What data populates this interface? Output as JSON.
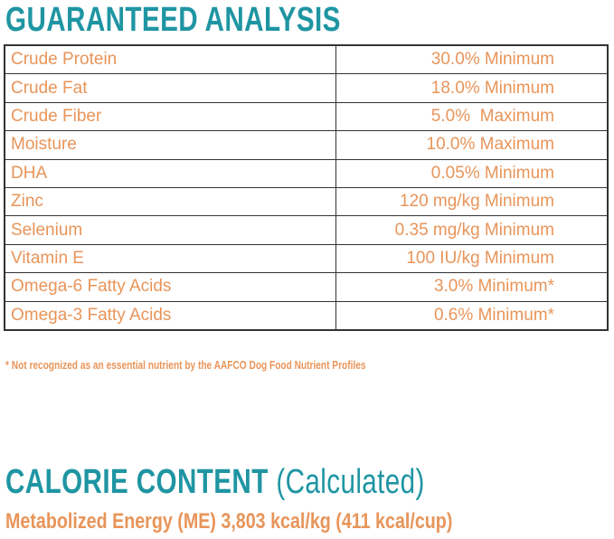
{
  "guaranteed_analysis": {
    "title": "GUARANTEED ANALYSIS",
    "rows": [
      {
        "label": "Crude Protein",
        "value": "30.0% Minimum"
      },
      {
        "label": "Crude Fat",
        "value": "18.0% Minimum"
      },
      {
        "label": "Crude Fiber",
        "value": "5.0%  Maximum"
      },
      {
        "label": "Moisture",
        "value": "10.0% Maximum"
      },
      {
        "label": "DHA",
        "value": "0.05% Minimum"
      },
      {
        "label": "Zinc",
        "value": "120 mg/kg Minimum"
      },
      {
        "label": "Selenium",
        "value": "0.35 mg/kg Minimum"
      },
      {
        "label": "Vitamin E",
        "value": "100 IU/kg Minimum"
      },
      {
        "label": "Omega-6 Fatty Acids",
        "value": "3.0% Minimum*"
      },
      {
        "label": "Omega-3 Fatty Acids",
        "value": "0.6% Minimum*"
      }
    ],
    "footnote": "* Not recognized as an essential nutrient by the AAFCO Dog Food Nutrient Profiles"
  },
  "calorie_content": {
    "title": "CALORIE CONTENT",
    "title_suffix": " (Calculated)",
    "energy": "Metabolized Energy (ME) 3,803 kcal/kg (411 kcal/cup)"
  },
  "colors": {
    "heading": "#1f95a3",
    "text": "#e8955a",
    "border": "#333333"
  }
}
